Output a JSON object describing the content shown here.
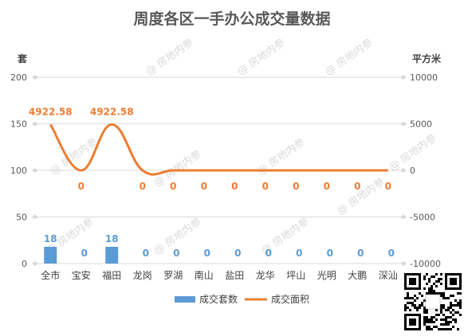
{
  "chart_data": {
    "type": "bar+line",
    "title": "周度各区一手办公成交量数据",
    "left_axis_label": "套",
    "right_axis_label": "平方米",
    "left_ylim": [
      0,
      200
    ],
    "left_ticks": [
      "0",
      "50",
      "100",
      "150",
      "200"
    ],
    "right_ylim": [
      -10000,
      10000
    ],
    "right_ticks": [
      "-10000",
      "-5000",
      "0",
      "5000",
      "10000"
    ],
    "categories": [
      "全市",
      "宝安",
      "福田",
      "龙岗",
      "罗湖",
      "南山",
      "盐田",
      "龙华",
      "坪山",
      "光明",
      "大鹏",
      "深汕"
    ],
    "series": [
      {
        "name": "成交套数",
        "type": "bar",
        "axis": "left",
        "color": "#5b9bd5",
        "values": [
          18,
          0,
          18,
          0,
          0,
          0,
          0,
          0,
          0,
          0,
          0,
          0
        ],
        "labels": [
          "18",
          "0",
          "18",
          "0",
          "0",
          "0",
          "0",
          "0",
          "0",
          "0",
          "0",
          "0"
        ]
      },
      {
        "name": "成交面积",
        "type": "line",
        "axis": "right",
        "color": "#ed7d31",
        "values": [
          4922.58,
          0,
          4922.58,
          0,
          0,
          0,
          0,
          0,
          0,
          0,
          0,
          0
        ],
        "labels": [
          "4922.58",
          "0",
          "4922.58",
          "0",
          "0",
          "0",
          "0",
          "0",
          "0",
          "0",
          "0",
          "0"
        ]
      }
    ],
    "grid": true,
    "legend_position": "bottom"
  },
  "watermark": "房地内参",
  "qr_icon": "qr-code-icon"
}
